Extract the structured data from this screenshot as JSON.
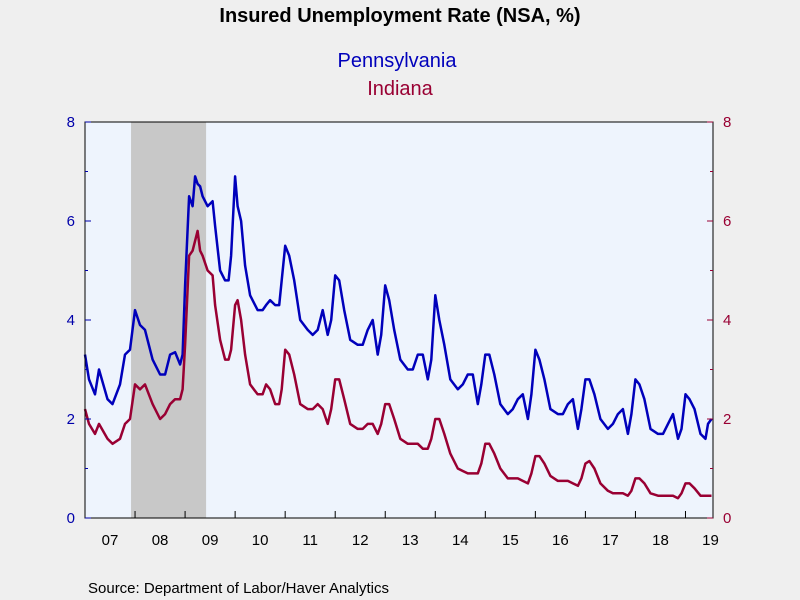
{
  "chart_data": {
    "type": "line",
    "title": "Insured Unemployment Rate (NSA, %)",
    "source": "Source:  Department of Labor/Haver Analytics",
    "ylim": [
      0,
      8
    ],
    "y_ticks": [
      0,
      2,
      4,
      6,
      8
    ],
    "y_tick_labels": [
      "0",
      "2",
      "4",
      "6",
      "8"
    ],
    "x_range": [
      2007.0,
      2019.55
    ],
    "x_tick_labels": [
      "07",
      "08",
      "09",
      "10",
      "11",
      "12",
      "13",
      "14",
      "15",
      "16",
      "17",
      "18",
      "19"
    ],
    "recession": [
      2007.92,
      2009.42
    ],
    "grid": false,
    "legend_position": "top-center",
    "colors": {
      "plot_background": "#eef4fd",
      "page_background": "#efefef",
      "recession_shade": "#c8c8c8",
      "left_axis": "#0000aa",
      "right_axis": "#990033"
    },
    "series": [
      {
        "name": "Pennsylvania",
        "color": "#0000bb",
        "axis": "left",
        "points": [
          [
            2007.0,
            3.3
          ],
          [
            2007.08,
            2.8
          ],
          [
            2007.2,
            2.5
          ],
          [
            2007.28,
            3.0
          ],
          [
            2007.45,
            2.4
          ],
          [
            2007.55,
            2.3
          ],
          [
            2007.7,
            2.7
          ],
          [
            2007.8,
            3.3
          ],
          [
            2007.9,
            3.4
          ],
          [
            2008.0,
            4.2
          ],
          [
            2008.1,
            3.9
          ],
          [
            2008.2,
            3.8
          ],
          [
            2008.35,
            3.2
          ],
          [
            2008.5,
            2.9
          ],
          [
            2008.6,
            2.9
          ],
          [
            2008.7,
            3.3
          ],
          [
            2008.8,
            3.35
          ],
          [
            2008.9,
            3.1
          ],
          [
            2008.95,
            3.3
          ],
          [
            2009.0,
            4.7
          ],
          [
            2009.08,
            6.5
          ],
          [
            2009.15,
            6.3
          ],
          [
            2009.2,
            6.9
          ],
          [
            2009.25,
            6.75
          ],
          [
            2009.3,
            6.7
          ],
          [
            2009.35,
            6.5
          ],
          [
            2009.45,
            6.3
          ],
          [
            2009.55,
            6.4
          ],
          [
            2009.6,
            5.9
          ],
          [
            2009.7,
            5.0
          ],
          [
            2009.8,
            4.8
          ],
          [
            2009.87,
            4.8
          ],
          [
            2009.92,
            5.3
          ],
          [
            2010.0,
            6.9
          ],
          [
            2010.05,
            6.3
          ],
          [
            2010.12,
            6.0
          ],
          [
            2010.2,
            5.1
          ],
          [
            2010.3,
            4.5
          ],
          [
            2010.45,
            4.2
          ],
          [
            2010.55,
            4.2
          ],
          [
            2010.62,
            4.3
          ],
          [
            2010.7,
            4.4
          ],
          [
            2010.8,
            4.3
          ],
          [
            2010.88,
            4.3
          ],
          [
            2010.93,
            4.8
          ],
          [
            2011.0,
            5.5
          ],
          [
            2011.08,
            5.3
          ],
          [
            2011.18,
            4.8
          ],
          [
            2011.3,
            4.0
          ],
          [
            2011.45,
            3.8
          ],
          [
            2011.55,
            3.7
          ],
          [
            2011.65,
            3.8
          ],
          [
            2011.75,
            4.2
          ],
          [
            2011.85,
            3.7
          ],
          [
            2011.92,
            4.0
          ],
          [
            2012.0,
            4.9
          ],
          [
            2012.08,
            4.8
          ],
          [
            2012.18,
            4.2
          ],
          [
            2012.3,
            3.6
          ],
          [
            2012.45,
            3.5
          ],
          [
            2012.55,
            3.5
          ],
          [
            2012.65,
            3.8
          ],
          [
            2012.75,
            4.0
          ],
          [
            2012.85,
            3.3
          ],
          [
            2012.92,
            3.7
          ],
          [
            2013.0,
            4.7
          ],
          [
            2013.08,
            4.4
          ],
          [
            2013.18,
            3.8
          ],
          [
            2013.3,
            3.2
          ],
          [
            2013.45,
            3.0
          ],
          [
            2013.55,
            3.0
          ],
          [
            2013.65,
            3.3
          ],
          [
            2013.75,
            3.3
          ],
          [
            2013.85,
            2.8
          ],
          [
            2013.92,
            3.2
          ],
          [
            2014.0,
            4.5
          ],
          [
            2014.08,
            4.0
          ],
          [
            2014.18,
            3.5
          ],
          [
            2014.3,
            2.8
          ],
          [
            2014.45,
            2.6
          ],
          [
            2014.55,
            2.7
          ],
          [
            2014.65,
            2.9
          ],
          [
            2014.75,
            2.9
          ],
          [
            2014.85,
            2.3
          ],
          [
            2014.92,
            2.7
          ],
          [
            2015.0,
            3.3
          ],
          [
            2015.08,
            3.3
          ],
          [
            2015.18,
            2.9
          ],
          [
            2015.3,
            2.3
          ],
          [
            2015.45,
            2.1
          ],
          [
            2015.55,
            2.2
          ],
          [
            2015.65,
            2.4
          ],
          [
            2015.75,
            2.5
          ],
          [
            2015.85,
            2.0
          ],
          [
            2015.92,
            2.5
          ],
          [
            2016.0,
            3.4
          ],
          [
            2016.08,
            3.2
          ],
          [
            2016.18,
            2.8
          ],
          [
            2016.3,
            2.2
          ],
          [
            2016.45,
            2.1
          ],
          [
            2016.55,
            2.1
          ],
          [
            2016.65,
            2.3
          ],
          [
            2016.75,
            2.4
          ],
          [
            2016.85,
            1.8
          ],
          [
            2016.92,
            2.2
          ],
          [
            2017.0,
            2.8
          ],
          [
            2017.08,
            2.8
          ],
          [
            2017.18,
            2.5
          ],
          [
            2017.3,
            2.0
          ],
          [
            2017.45,
            1.8
          ],
          [
            2017.55,
            1.9
          ],
          [
            2017.65,
            2.1
          ],
          [
            2017.75,
            2.2
          ],
          [
            2017.85,
            1.7
          ],
          [
            2017.92,
            2.1
          ],
          [
            2018.0,
            2.8
          ],
          [
            2018.08,
            2.7
          ],
          [
            2018.18,
            2.4
          ],
          [
            2018.3,
            1.8
          ],
          [
            2018.45,
            1.7
          ],
          [
            2018.55,
            1.7
          ],
          [
            2018.65,
            1.9
          ],
          [
            2018.75,
            2.1
          ],
          [
            2018.85,
            1.6
          ],
          [
            2018.92,
            1.8
          ],
          [
            2019.0,
            2.5
          ],
          [
            2019.08,
            2.4
          ],
          [
            2019.18,
            2.2
          ],
          [
            2019.3,
            1.7
          ],
          [
            2019.4,
            1.6
          ],
          [
            2019.45,
            1.9
          ],
          [
            2019.52,
            2.0
          ]
        ]
      },
      {
        "name": "Indiana",
        "color": "#990033",
        "axis": "right",
        "points": [
          [
            2007.0,
            2.2
          ],
          [
            2007.08,
            1.9
          ],
          [
            2007.2,
            1.7
          ],
          [
            2007.28,
            1.9
          ],
          [
            2007.45,
            1.6
          ],
          [
            2007.55,
            1.5
          ],
          [
            2007.7,
            1.6
          ],
          [
            2007.8,
            1.9
          ],
          [
            2007.9,
            2.0
          ],
          [
            2008.0,
            2.7
          ],
          [
            2008.1,
            2.6
          ],
          [
            2008.2,
            2.7
          ],
          [
            2008.35,
            2.3
          ],
          [
            2008.5,
            2.0
          ],
          [
            2008.6,
            2.1
          ],
          [
            2008.7,
            2.3
          ],
          [
            2008.8,
            2.4
          ],
          [
            2008.9,
            2.4
          ],
          [
            2008.95,
            2.6
          ],
          [
            2009.0,
            3.5
          ],
          [
            2009.08,
            5.3
          ],
          [
            2009.15,
            5.4
          ],
          [
            2009.2,
            5.6
          ],
          [
            2009.25,
            5.8
          ],
          [
            2009.3,
            5.4
          ],
          [
            2009.35,
            5.3
          ],
          [
            2009.45,
            5.0
          ],
          [
            2009.55,
            4.9
          ],
          [
            2009.6,
            4.3
          ],
          [
            2009.7,
            3.6
          ],
          [
            2009.8,
            3.2
          ],
          [
            2009.87,
            3.2
          ],
          [
            2009.92,
            3.4
          ],
          [
            2010.0,
            4.3
          ],
          [
            2010.05,
            4.4
          ],
          [
            2010.12,
            4.0
          ],
          [
            2010.2,
            3.3
          ],
          [
            2010.3,
            2.7
          ],
          [
            2010.45,
            2.5
          ],
          [
            2010.55,
            2.5
          ],
          [
            2010.62,
            2.7
          ],
          [
            2010.7,
            2.6
          ],
          [
            2010.8,
            2.3
          ],
          [
            2010.88,
            2.3
          ],
          [
            2010.93,
            2.6
          ],
          [
            2011.0,
            3.4
          ],
          [
            2011.08,
            3.3
          ],
          [
            2011.18,
            2.9
          ],
          [
            2011.3,
            2.3
          ],
          [
            2011.45,
            2.2
          ],
          [
            2011.55,
            2.2
          ],
          [
            2011.65,
            2.3
          ],
          [
            2011.75,
            2.2
          ],
          [
            2011.85,
            1.9
          ],
          [
            2011.92,
            2.2
          ],
          [
            2012.0,
            2.8
          ],
          [
            2012.08,
            2.8
          ],
          [
            2012.18,
            2.4
          ],
          [
            2012.3,
            1.9
          ],
          [
            2012.45,
            1.8
          ],
          [
            2012.55,
            1.8
          ],
          [
            2012.65,
            1.9
          ],
          [
            2012.75,
            1.9
          ],
          [
            2012.85,
            1.7
          ],
          [
            2012.92,
            1.9
          ],
          [
            2013.0,
            2.3
          ],
          [
            2013.08,
            2.3
          ],
          [
            2013.18,
            2.0
          ],
          [
            2013.3,
            1.6
          ],
          [
            2013.45,
            1.5
          ],
          [
            2013.55,
            1.5
          ],
          [
            2013.65,
            1.5
          ],
          [
            2013.75,
            1.4
          ],
          [
            2013.85,
            1.4
          ],
          [
            2013.92,
            1.6
          ],
          [
            2014.0,
            2.0
          ],
          [
            2014.08,
            2.0
          ],
          [
            2014.18,
            1.7
          ],
          [
            2014.3,
            1.3
          ],
          [
            2014.45,
            1.0
          ],
          [
            2014.55,
            0.95
          ],
          [
            2014.65,
            0.9
          ],
          [
            2014.75,
            0.9
          ],
          [
            2014.85,
            0.9
          ],
          [
            2014.92,
            1.1
          ],
          [
            2015.0,
            1.5
          ],
          [
            2015.08,
            1.5
          ],
          [
            2015.18,
            1.3
          ],
          [
            2015.3,
            1.0
          ],
          [
            2015.45,
            0.8
          ],
          [
            2015.55,
            0.8
          ],
          [
            2015.65,
            0.8
          ],
          [
            2015.75,
            0.75
          ],
          [
            2015.85,
            0.7
          ],
          [
            2015.92,
            0.9
          ],
          [
            2016.0,
            1.25
          ],
          [
            2016.08,
            1.25
          ],
          [
            2016.18,
            1.1
          ],
          [
            2016.3,
            0.85
          ],
          [
            2016.45,
            0.75
          ],
          [
            2016.55,
            0.75
          ],
          [
            2016.65,
            0.75
          ],
          [
            2016.75,
            0.7
          ],
          [
            2016.85,
            0.65
          ],
          [
            2016.92,
            0.8
          ],
          [
            2017.0,
            1.1
          ],
          [
            2017.08,
            1.15
          ],
          [
            2017.18,
            1.0
          ],
          [
            2017.3,
            0.7
          ],
          [
            2017.45,
            0.55
          ],
          [
            2017.55,
            0.5
          ],
          [
            2017.65,
            0.5
          ],
          [
            2017.75,
            0.5
          ],
          [
            2017.85,
            0.45
          ],
          [
            2017.92,
            0.55
          ],
          [
            2018.0,
            0.8
          ],
          [
            2018.08,
            0.8
          ],
          [
            2018.18,
            0.7
          ],
          [
            2018.3,
            0.5
          ],
          [
            2018.45,
            0.45
          ],
          [
            2018.55,
            0.45
          ],
          [
            2018.65,
            0.45
          ],
          [
            2018.75,
            0.45
          ],
          [
            2018.85,
            0.4
          ],
          [
            2018.92,
            0.5
          ],
          [
            2019.0,
            0.7
          ],
          [
            2019.08,
            0.7
          ],
          [
            2019.18,
            0.6
          ],
          [
            2019.3,
            0.45
          ],
          [
            2019.4,
            0.45
          ],
          [
            2019.45,
            0.45
          ],
          [
            2019.52,
            0.45
          ]
        ]
      }
    ]
  }
}
